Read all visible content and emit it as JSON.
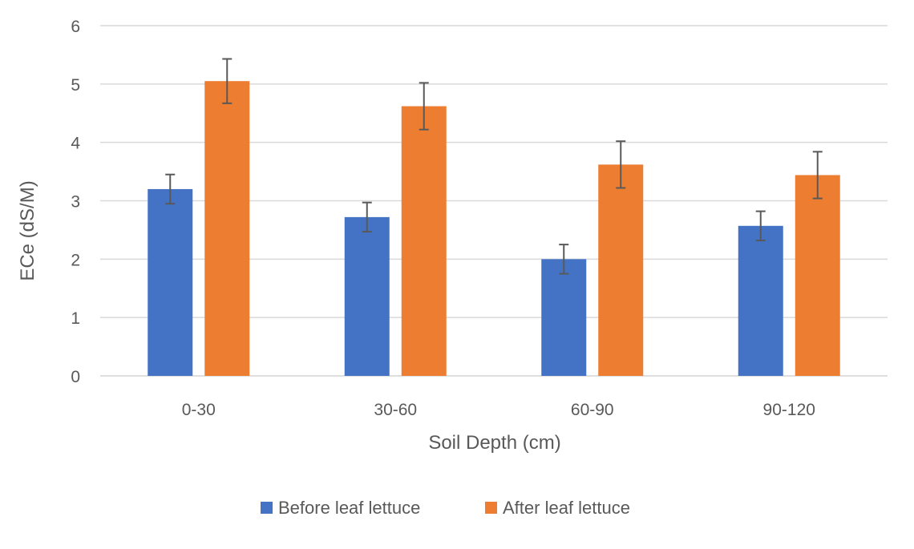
{
  "chart_data": {
    "type": "bar",
    "title": "",
    "xlabel": "Soil Depth (cm)",
    "ylabel": "ECe (dS/M)",
    "ylim": [
      0,
      6
    ],
    "yticks": [
      "0",
      "1",
      "2",
      "3",
      "4",
      "5",
      "6"
    ],
    "categories": [
      "0-30",
      "30-60",
      "60-90",
      "90-120"
    ],
    "grid": true,
    "legend_position": "bottom",
    "series": [
      {
        "name": "Before leaf lettuce",
        "color": "#4472C4",
        "values": [
          3.2,
          2.72,
          2.0,
          2.57
        ],
        "errors": [
          0.25,
          0.25,
          0.25,
          0.25
        ]
      },
      {
        "name": "After leaf lettuce",
        "color": "#ED7D31",
        "values": [
          5.05,
          4.62,
          3.62,
          3.44
        ],
        "errors": [
          0.38,
          0.4,
          0.4,
          0.4
        ]
      }
    ],
    "colors": {
      "grid": "#D9D9D9",
      "errorbar": "#595959",
      "text": "#595959"
    }
  }
}
